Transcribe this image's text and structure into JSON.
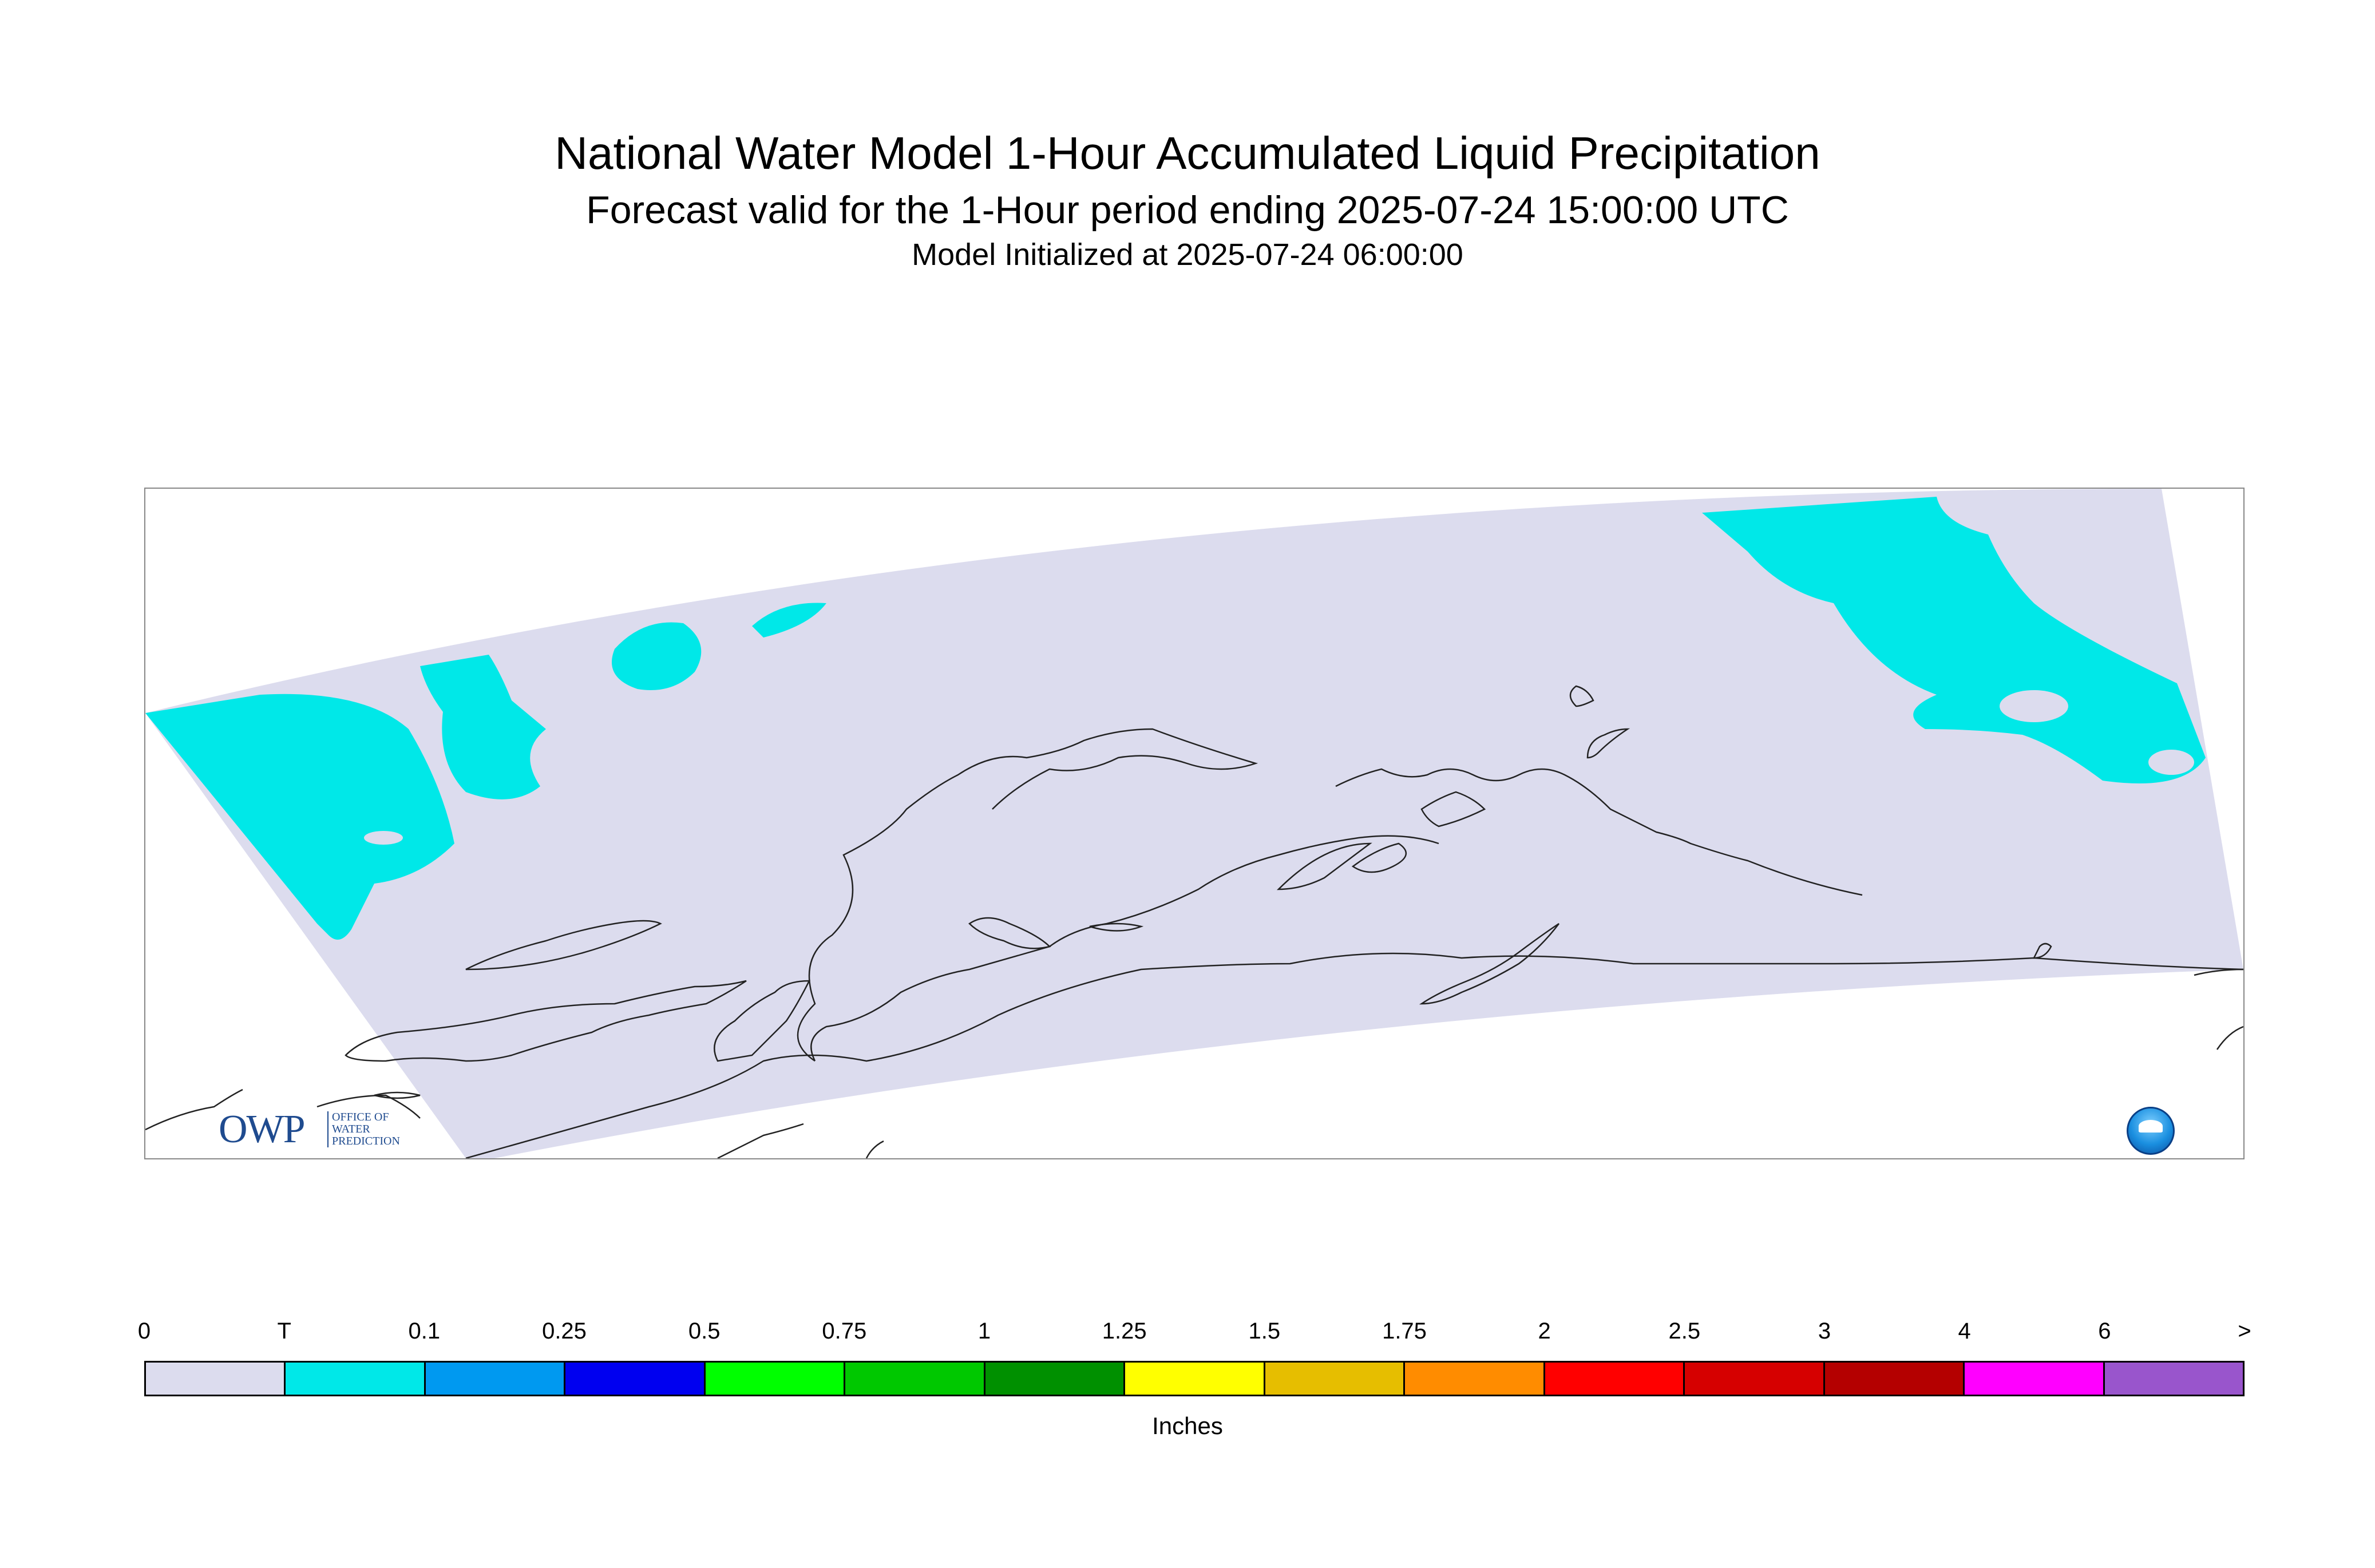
{
  "header": {
    "title": "National Water Model 1-Hour Accumulated Liquid Precipitation",
    "subtitle": "Forecast valid for the 1-Hour period ending 2025-07-24 15:00:00 UTC",
    "init_line": "Model Initialized at 2025-07-24 06:00:00"
  },
  "map": {
    "region_fill": "#dcdcee",
    "precip_fill": "#00e8e8",
    "coast_color": "#222222",
    "logos": {
      "owp_mark": "OWP",
      "owp_subtext": [
        "OFFICE OF",
        "WATER",
        "PREDICTION"
      ],
      "noaa_icon": "noaa-logo-icon"
    }
  },
  "legend": {
    "labels": [
      "0",
      "T",
      "0.1",
      "0.25",
      "0.5",
      "0.75",
      "1",
      "1.25",
      "1.5",
      "1.75",
      "2",
      "2.5",
      "3",
      "4",
      "6",
      ">"
    ],
    "colors": [
      "#dcdcee",
      "#00e8e8",
      "#0099f0",
      "#0000f0",
      "#00ff00",
      "#00c800",
      "#009000",
      "#ffff00",
      "#e6be00",
      "#ff8c00",
      "#ff0000",
      "#d60000",
      "#b40000",
      "#ff00ff",
      "#9955cc"
    ],
    "units": "Inches"
  }
}
